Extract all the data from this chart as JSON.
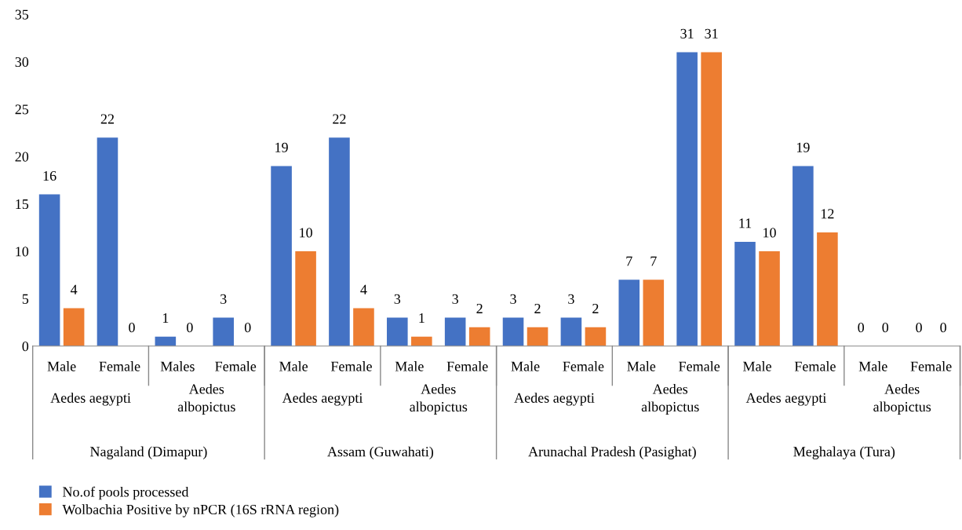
{
  "chart_data": {
    "type": "bar",
    "categories": [
      "Male",
      "Female",
      "Males",
      "Female",
      "Male",
      "Female",
      "Male",
      "Female",
      "Male",
      "Female",
      "Male",
      "Female",
      "Male",
      "Female",
      "Male",
      "Female"
    ],
    "series": [
      {
        "name": "No.of pools processed",
        "color": "#4472c4",
        "values": [
          16,
          22,
          1,
          3,
          19,
          22,
          3,
          3,
          3,
          3,
          7,
          31,
          11,
          19,
          0,
          0
        ]
      },
      {
        "name": "Wolbachia Positive by nPCR (16S rRNA region)",
        "color": "#ed7d31",
        "values": [
          4,
          0,
          0,
          0,
          10,
          4,
          1,
          2,
          2,
          2,
          7,
          31,
          10,
          12,
          0,
          0
        ]
      }
    ],
    "annotations": [
      "Aedes aegypti",
      "Aedes albopictus",
      "Aedes aegypti",
      "Aedes albopictus",
      "Aedes aegypti",
      "Aedes albopictus",
      "Aedes aegypti",
      "Aedes albopictus",
      "Nagaland (Dimapur)",
      "Assam (Guwahati)",
      "Arunachal Pradesh (Pasighat)",
      "Meghalaya (Tura)"
    ],
    "ylim": [
      0,
      35
    ],
    "yticks": [
      0,
      5,
      10,
      15,
      20,
      25,
      30,
      35
    ],
    "grid": false,
    "legend": "bottom left",
    "data_labels": true
  }
}
